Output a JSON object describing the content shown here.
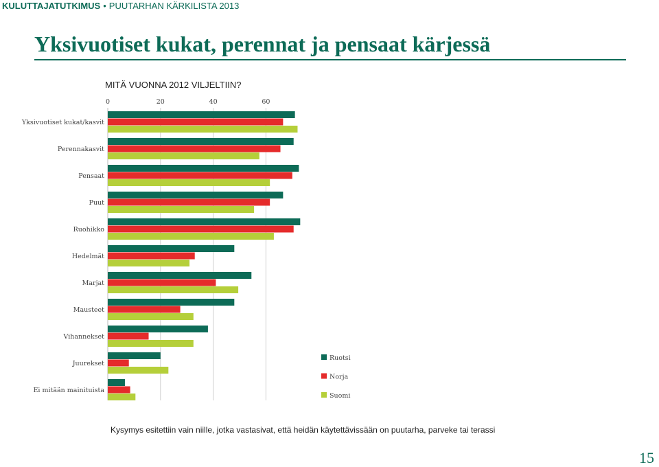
{
  "header": {
    "brand": "KULUTTAJATUTKIMUS",
    "separator": "•",
    "report": "PUUTARHAN KÄRKILISTA 2013"
  },
  "title": "Yksivuotiset kukat, perennat ja pensaat kärjessä",
  "chart_data": {
    "type": "bar",
    "orientation": "horizontal",
    "title": "MITÄ VUONNA 2012 VILJELTIIN?",
    "xlabel": "",
    "ylabel": "",
    "xlim": [
      0,
      80
    ],
    "xticks": [
      0,
      20,
      40,
      60
    ],
    "grid": true,
    "legend_position": "bottom-right",
    "categories": [
      "Yksivuotiset kukat/kasvit",
      "Perennakasvit",
      "Pensaat",
      "Puut",
      "Ruohikko",
      "Hedelmät",
      "Marjat",
      "Mausteet",
      "Vihannekset",
      "Juurekset",
      "Ei mitään mainituista"
    ],
    "series": [
      {
        "name": "Ruotsi",
        "color": "#0d6b57",
        "values": [
          71,
          70.5,
          72.5,
          66.5,
          73,
          48,
          54.5,
          48,
          38,
          20,
          6.5
        ]
      },
      {
        "name": "Norja",
        "color": "#e52b2b",
        "values": [
          66.5,
          65.5,
          70,
          61.5,
          70.5,
          33,
          41,
          27.5,
          15.5,
          8,
          8.5
        ]
      },
      {
        "name": "Suomi",
        "color": "#b5cf3a",
        "values": [
          72,
          57.5,
          61.5,
          55.5,
          63,
          31,
          49.5,
          32.5,
          32.5,
          23,
          10.5
        ]
      }
    ]
  },
  "footnote": "Kysymys esitettiin vain niille, jotka vastasivat, että heidän käytettävissään on puutarha, parveke tai terassi",
  "page_number": "15"
}
